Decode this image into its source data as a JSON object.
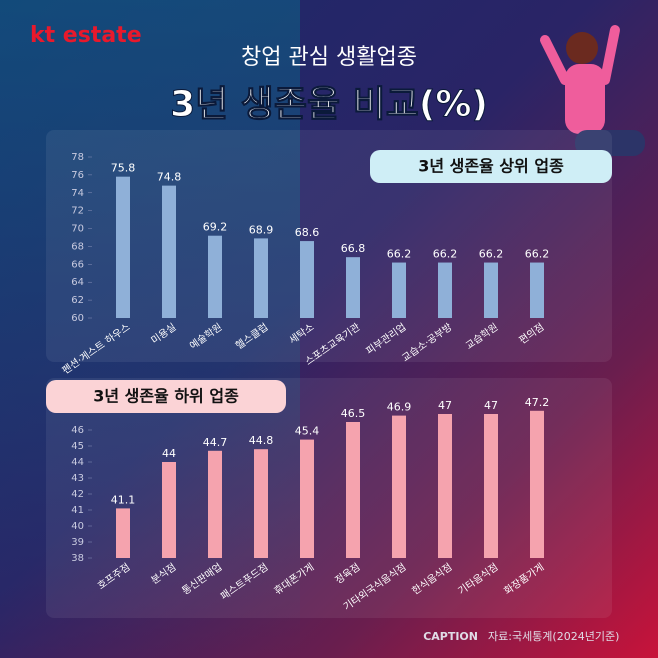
{
  "header": {
    "logo": "kt estate",
    "subtitle": "창업 관심 생활업종",
    "title": "3년 생존율 비교(%)"
  },
  "chart_data": [
    {
      "type": "bar",
      "title": "3년 생존율 상위 업종",
      "categories": [
        "펜션·게스트 하우스",
        "미용실",
        "예술학원",
        "헬스클럽",
        "세탁소",
        "스포츠교육기관",
        "피부관리업",
        "교습소·공부방",
        "교습학원",
        "편의점"
      ],
      "values": [
        75.8,
        74.8,
        69.2,
        68.9,
        68.6,
        66.8,
        66.2,
        66.2,
        66.2,
        66.2
      ],
      "color": "#8fb0d8",
      "ylim": [
        60,
        78
      ],
      "yticks": [
        60,
        62,
        64,
        66,
        68,
        70,
        72,
        74,
        76,
        78
      ]
    },
    {
      "type": "bar",
      "title": "3년 생존율 하위 업종",
      "categories": [
        "호프주점",
        "분식점",
        "통신판매업",
        "패스트푸드점",
        "휴대폰가게",
        "정육점",
        "기타외국식음식점",
        "한식음식점",
        "기타음식점",
        "화장품가게"
      ],
      "values": [
        41.1,
        44,
        44.7,
        44.8,
        45.4,
        46.5,
        46.9,
        47,
        47,
        47.2
      ],
      "color": "#f5a3ae",
      "ylim": [
        38,
        47.5
      ],
      "yticks": [
        38,
        39,
        40,
        41,
        42,
        43,
        44,
        45,
        46
      ]
    }
  ],
  "footer": {
    "caption": "CAPTION",
    "source": "자료:국세통계(2024년기준)"
  }
}
